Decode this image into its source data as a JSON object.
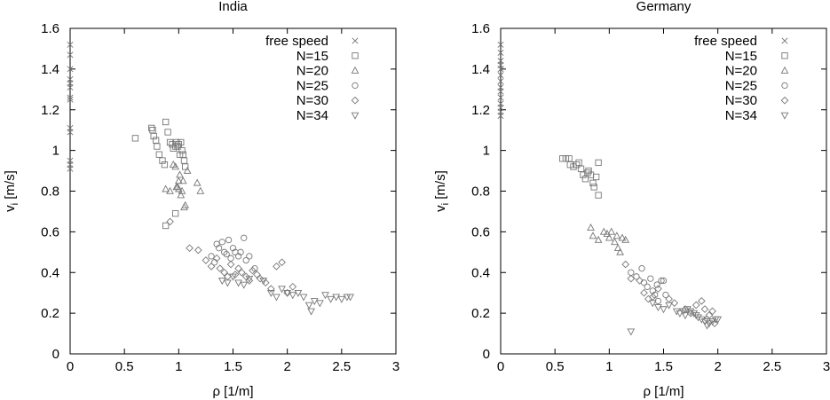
{
  "chart_data": [
    {
      "type": "scatter",
      "title": "India",
      "xlabel": "ρ [1/m]",
      "ylabel": "v",
      "ylabel_sub": "i",
      "ylabel_unit": " [m/s]",
      "xlim": [
        0,
        3
      ],
      "ylim": [
        0,
        1.6
      ],
      "xticks": [
        "0",
        "0.5",
        "1",
        "1.5",
        "2",
        "2.5",
        "3"
      ],
      "yticks": [
        "0",
        "0.2",
        "0.4",
        "0.6",
        "0.8",
        "1",
        "1.2",
        "1.4",
        "1.6"
      ],
      "grid": false,
      "legend_position": "top-right",
      "color": "#777777",
      "series": [
        {
          "name": "free speed",
          "marker": "x",
          "points": [
            [
              0,
              1.52
            ],
            [
              0,
              1.47
            ],
            [
              0,
              1.4
            ],
            [
              0,
              1.35
            ],
            [
              0,
              1.33
            ],
            [
              0,
              1.31
            ],
            [
              0,
              1.26
            ],
            [
              0,
              1.25
            ],
            [
              0,
              1.11
            ],
            [
              0,
              1.09
            ],
            [
              0,
              0.95
            ],
            [
              0,
              0.93
            ],
            [
              0,
              0.91
            ]
          ]
        },
        {
          "name": "N=15",
          "marker": "square",
          "points": [
            [
              0.6,
              1.06
            ],
            [
              0.75,
              1.11
            ],
            [
              0.76,
              1.1
            ],
            [
              0.77,
              1.07
            ],
            [
              0.79,
              1.05
            ],
            [
              0.8,
              1.02
            ],
            [
              0.82,
              0.98
            ],
            [
              0.85,
              0.95
            ],
            [
              0.87,
              0.93
            ],
            [
              0.88,
              1.14
            ],
            [
              0.9,
              1.09
            ],
            [
              0.92,
              1.04
            ],
            [
              0.94,
              1.03
            ],
            [
              0.95,
              1.01
            ],
            [
              0.97,
              1.02
            ],
            [
              0.98,
              1.04
            ],
            [
              0.99,
              1.02
            ],
            [
              1.0,
              1.03
            ],
            [
              1.01,
              0.98
            ],
            [
              1.02,
              1.04
            ],
            [
              1.03,
              1.0
            ],
            [
              1.04,
              0.98
            ],
            [
              1.05,
              0.95
            ],
            [
              1.06,
              0.92
            ],
            [
              0.88,
              0.63
            ],
            [
              0.97,
              0.69
            ]
          ]
        },
        {
          "name": "N=20",
          "marker": "triangle-up",
          "points": [
            [
              0.88,
              0.81
            ],
            [
              0.92,
              0.8
            ],
            [
              0.95,
              0.93
            ],
            [
              0.97,
              0.92
            ],
            [
              0.98,
              0.82
            ],
            [
              0.99,
              0.82
            ],
            [
              1.0,
              0.81
            ],
            [
              1.0,
              0.85
            ],
            [
              1.01,
              0.88
            ],
            [
              1.02,
              0.78
            ],
            [
              1.03,
              0.8
            ],
            [
              1.04,
              0.85
            ],
            [
              1.05,
              0.72
            ],
            [
              1.06,
              0.73
            ],
            [
              1.08,
              0.9
            ],
            [
              1.17,
              0.84
            ],
            [
              1.2,
              0.8
            ]
          ]
        },
        {
          "name": "N=25",
          "marker": "circle",
          "points": [
            [
              1.3,
              0.48
            ],
            [
              1.33,
              0.45
            ],
            [
              1.35,
              0.54
            ],
            [
              1.37,
              0.52
            ],
            [
              1.4,
              0.55
            ],
            [
              1.42,
              0.5
            ],
            [
              1.44,
              0.49
            ],
            [
              1.46,
              0.56
            ],
            [
              1.48,
              0.47
            ],
            [
              1.5,
              0.52
            ],
            [
              1.52,
              0.5
            ],
            [
              1.55,
              0.48
            ],
            [
              1.57,
              0.5
            ],
            [
              1.6,
              0.57
            ],
            [
              1.62,
              0.46
            ],
            [
              1.65,
              0.48
            ],
            [
              1.7,
              0.42
            ]
          ]
        },
        {
          "name": "N=30",
          "marker": "diamond",
          "points": [
            [
              0.92,
              0.65
            ],
            [
              1.1,
              0.52
            ],
            [
              1.18,
              0.51
            ],
            [
              1.25,
              0.46
            ],
            [
              1.3,
              0.43
            ],
            [
              1.35,
              0.47
            ],
            [
              1.38,
              0.42
            ],
            [
              1.42,
              0.4
            ],
            [
              1.45,
              0.38
            ],
            [
              1.48,
              0.44
            ],
            [
              1.52,
              0.39
            ],
            [
              1.55,
              0.42
            ],
            [
              1.58,
              0.4
            ],
            [
              1.62,
              0.38
            ],
            [
              1.65,
              0.36
            ],
            [
              1.68,
              0.41
            ],
            [
              1.72,
              0.39
            ],
            [
              1.75,
              0.37
            ],
            [
              1.8,
              0.35
            ],
            [
              1.85,
              0.32
            ],
            [
              1.9,
              0.43
            ],
            [
              1.95,
              0.45
            ],
            [
              2.0,
              0.3
            ],
            [
              2.05,
              0.33
            ]
          ]
        },
        {
          "name": "N=34",
          "marker": "triangle-down",
          "points": [
            [
              1.4,
              0.36
            ],
            [
              1.45,
              0.35
            ],
            [
              1.5,
              0.38
            ],
            [
              1.55,
              0.35
            ],
            [
              1.6,
              0.34
            ],
            [
              1.65,
              0.37
            ],
            [
              1.78,
              0.36
            ],
            [
              1.85,
              0.3
            ],
            [
              1.9,
              0.28
            ],
            [
              1.95,
              0.32
            ],
            [
              2.0,
              0.3
            ],
            [
              2.05,
              0.29
            ],
            [
              2.1,
              0.3
            ],
            [
              2.15,
              0.28
            ],
            [
              2.2,
              0.24
            ],
            [
              2.22,
              0.21
            ],
            [
              2.25,
              0.26
            ],
            [
              2.3,
              0.25
            ],
            [
              2.35,
              0.29
            ],
            [
              2.4,
              0.27
            ],
            [
              2.45,
              0.28
            ],
            [
              2.5,
              0.27
            ],
            [
              2.55,
              0.28
            ],
            [
              2.58,
              0.28
            ]
          ]
        }
      ]
    },
    {
      "type": "scatter",
      "title": "Germany",
      "xlabel": "ρ [1/m]",
      "ylabel": "v",
      "ylabel_sub": "i",
      "ylabel_unit": " [m/s]",
      "xlim": [
        0,
        3
      ],
      "ylim": [
        0,
        1.6
      ],
      "xticks": [
        "0",
        "0.5",
        "1",
        "1.5",
        "2",
        "2.5",
        "3"
      ],
      "yticks": [
        "0",
        "0.2",
        "0.4",
        "0.6",
        "0.8",
        "1",
        "1.2",
        "1.4",
        "1.6"
      ],
      "grid": false,
      "legend_position": "top-right",
      "color": "#777777",
      "series": [
        {
          "name": "free speed",
          "marker": "x",
          "points": [
            [
              0,
              1.52
            ],
            [
              0,
              1.48
            ],
            [
              0,
              1.44
            ],
            [
              0,
              1.42
            ],
            [
              0,
              1.4
            ],
            [
              0,
              1.37
            ],
            [
              0,
              1.34
            ],
            [
              0,
              1.31
            ],
            [
              0,
              1.29
            ],
            [
              0,
              1.26
            ],
            [
              0,
              1.23
            ],
            [
              0,
              1.21
            ],
            [
              0,
              1.19
            ],
            [
              0,
              1.17
            ]
          ]
        },
        {
          "name": "N=15",
          "marker": "square",
          "points": [
            [
              0.57,
              0.96
            ],
            [
              0.6,
              0.96
            ],
            [
              0.63,
              0.96
            ],
            [
              0.64,
              0.93
            ],
            [
              0.67,
              0.92
            ],
            [
              0.7,
              0.93
            ],
            [
              0.72,
              0.94
            ],
            [
              0.74,
              0.91
            ],
            [
              0.76,
              0.88
            ],
            [
              0.78,
              0.86
            ],
            [
              0.8,
              0.89
            ],
            [
              0.81,
              0.9
            ],
            [
              0.83,
              0.88
            ],
            [
              0.85,
              0.84
            ],
            [
              0.86,
              0.82
            ],
            [
              0.88,
              0.87
            ],
            [
              0.9,
              0.94
            ],
            [
              0.9,
              0.78
            ]
          ]
        },
        {
          "name": "N=20",
          "marker": "triangle-up",
          "points": [
            [
              0.83,
              0.62
            ],
            [
              0.85,
              0.58
            ],
            [
              0.9,
              0.56
            ],
            [
              0.95,
              0.6
            ],
            [
              0.98,
              0.59
            ],
            [
              1.0,
              0.57
            ],
            [
              1.02,
              0.6
            ],
            [
              1.05,
              0.55
            ],
            [
              1.07,
              0.58
            ],
            [
              1.08,
              0.52
            ],
            [
              1.1,
              0.5
            ],
            [
              1.12,
              0.57
            ],
            [
              1.15,
              0.56
            ]
          ]
        },
        {
          "name": "N=25",
          "marker": "circle",
          "points": [
            [
              1.2,
              0.4
            ],
            [
              1.25,
              0.38
            ],
            [
              1.3,
              0.42
            ],
            [
              1.32,
              0.35
            ],
            [
              1.35,
              0.33
            ],
            [
              1.38,
              0.37
            ],
            [
              1.4,
              0.31
            ],
            [
              1.42,
              0.29
            ],
            [
              1.44,
              0.34
            ],
            [
              1.45,
              0.26
            ],
            [
              1.48,
              0.36
            ],
            [
              1.5,
              0.36
            ],
            [
              1.52,
              0.29
            ]
          ]
        },
        {
          "name": "N=30",
          "marker": "diamond",
          "points": [
            [
              1.15,
              0.44
            ],
            [
              1.2,
              0.37
            ],
            [
              1.28,
              0.36
            ],
            [
              1.32,
              0.3
            ],
            [
              1.36,
              0.27
            ],
            [
              1.4,
              0.28
            ],
            [
              1.45,
              0.32
            ],
            [
              1.55,
              0.27
            ],
            [
              1.6,
              0.25
            ],
            [
              1.7,
              0.22
            ],
            [
              1.75,
              0.2
            ],
            [
              1.8,
              0.24
            ],
            [
              1.85,
              0.26
            ],
            [
              1.88,
              0.22
            ],
            [
              1.9,
              0.17
            ],
            [
              1.92,
              0.19
            ],
            [
              1.95,
              0.21
            ],
            [
              1.97,
              0.15
            ]
          ]
        },
        {
          "name": "N=34",
          "marker": "triangle-down",
          "points": [
            [
              1.4,
              0.25
            ],
            [
              1.45,
              0.23
            ],
            [
              1.5,
              0.22
            ],
            [
              1.55,
              0.24
            ],
            [
              1.62,
              0.21
            ],
            [
              1.65,
              0.2
            ],
            [
              1.68,
              0.21
            ],
            [
              1.7,
              0.19
            ],
            [
              1.72,
              0.22
            ],
            [
              1.75,
              0.21
            ],
            [
              1.78,
              0.2
            ],
            [
              1.8,
              0.19
            ],
            [
              1.82,
              0.18
            ],
            [
              1.85,
              0.17
            ],
            [
              1.88,
              0.16
            ],
            [
              1.9,
              0.14
            ],
            [
              1.92,
              0.15
            ],
            [
              1.95,
              0.16
            ],
            [
              1.98,
              0.17
            ],
            [
              2.0,
              0.17
            ],
            [
              1.2,
              0.11
            ]
          ]
        }
      ]
    }
  ]
}
